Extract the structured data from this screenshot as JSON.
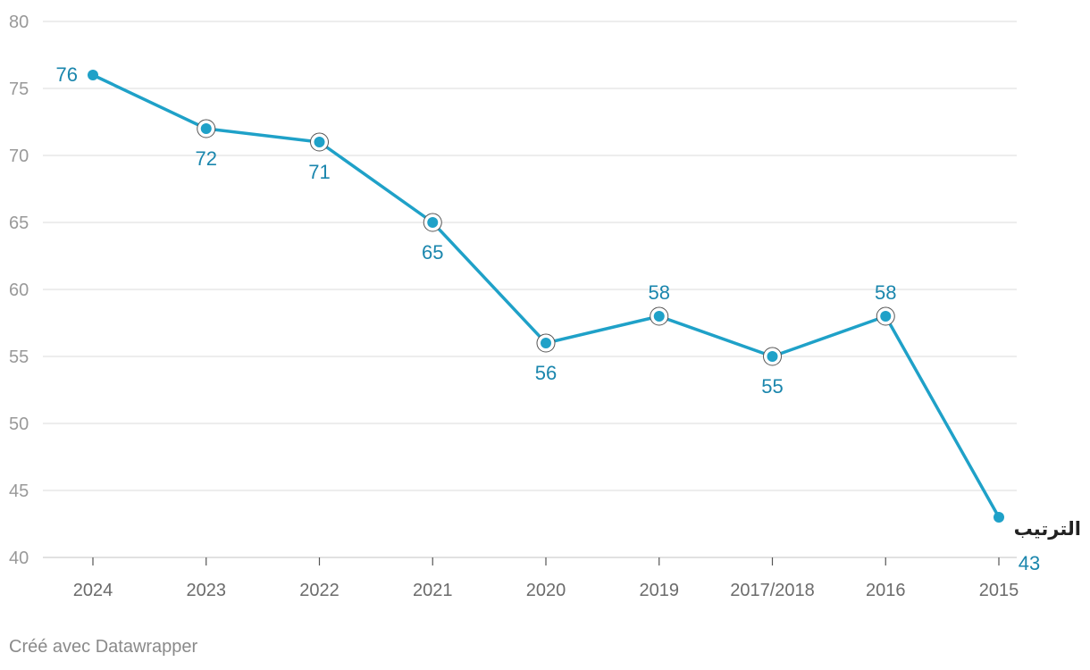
{
  "chart_data": {
    "type": "line",
    "categories": [
      "2024",
      "2023",
      "2022",
      "2021",
      "2020",
      "2019",
      "2017/2018",
      "2016",
      "2015"
    ],
    "series": [
      {
        "name": "الترتيب",
        "values": [
          76,
          72,
          71,
          65,
          56,
          58,
          55,
          58,
          43
        ]
      }
    ],
    "data_labels": [
      "76",
      "72",
      "71",
      "65",
      "56",
      "58",
      "55",
      "58",
      "43"
    ],
    "y_ticks": [
      "80",
      "75",
      "70",
      "65",
      "60",
      "55",
      "50",
      "45",
      "40"
    ],
    "ylim": [
      40,
      80
    ],
    "grid": true,
    "xlabel": "",
    "ylabel": "",
    "colors": {
      "line": "#1fa1c8",
      "label": "#1a86ad",
      "grid": "#e2e2e2",
      "tick_text": "#999999",
      "x_tick_text": "#6b6b6b",
      "series_label": "#222222"
    }
  },
  "credit": "Créé avec Datawrapper"
}
